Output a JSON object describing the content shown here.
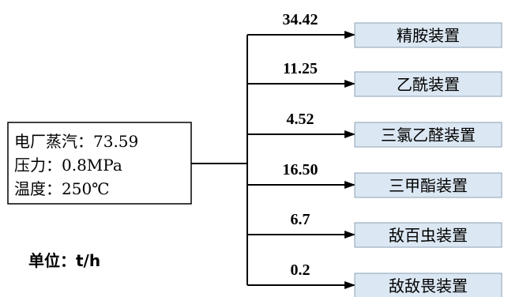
{
  "source": {
    "line1": "电厂蒸汽：73.59",
    "line2": "压力：0.8MPa",
    "line3": "温度：250℃"
  },
  "unit_label": "单位：t/h",
  "colors": {
    "target_fill": "#dbe7f2",
    "target_border": "#8ea2b6",
    "line": "#000000"
  },
  "branches": [
    {
      "value": "34.42",
      "target": "精胺装置"
    },
    {
      "value": "11.25",
      "target": "乙酰装置"
    },
    {
      "value": "4.52",
      "target": "三氯乙醛装置"
    },
    {
      "value": "16.50",
      "target": "三甲酯装置"
    },
    {
      "value": "6.7",
      "target": "敌百虫装置"
    },
    {
      "value": "0.2",
      "target": "敌敌畏装置"
    }
  ]
}
